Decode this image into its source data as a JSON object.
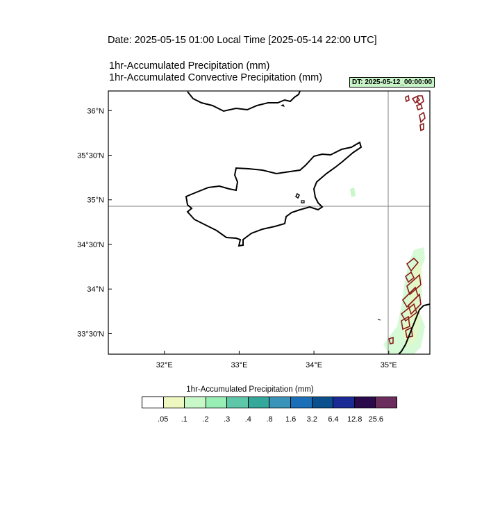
{
  "header": {
    "date_line": "Date: 2025-05-15  01:00 Local Time [2025-05-14  22:00 UTC]",
    "title_1": "1hr-Accumulated Precipitation   (mm)",
    "title_2": "1hr-Accumulated Convective Precipitation   (mm)",
    "dt_badge": "DT: 2025-05-12_00:00:00"
  },
  "map": {
    "lon_range": [
      31.25,
      35.55
    ],
    "lat_range": [
      33.27,
      36.22
    ],
    "lat_ticks": [
      {
        "value": 36.0,
        "label": "36°N"
      },
      {
        "value": 35.5,
        "label": "35°30'N"
      },
      {
        "value": 35.0,
        "label": "35°N"
      },
      {
        "value": 34.5,
        "label": "34°30'N"
      },
      {
        "value": 34.0,
        "label": "34°N"
      },
      {
        "value": 33.5,
        "label": "33°30'N"
      }
    ],
    "lon_ticks": [
      {
        "value": 32,
        "label": "32°E"
      },
      {
        "value": 33,
        "label": "33°E"
      },
      {
        "value": 34,
        "label": "34°E"
      },
      {
        "value": 35,
        "label": "35°E"
      }
    ],
    "gridlines": {
      "lat": 35.0,
      "lon": 35.0
    },
    "land_color": "#000000",
    "convective_contour_color": "#8b1a1a"
  },
  "colorbar": {
    "title": "1hr-Accumulated Precipitation  (mm)",
    "colors": [
      "#ffffff",
      "#eef7c0",
      "#c8f7c8",
      "#98eeb4",
      "#5ec7a8",
      "#34a89a",
      "#3a93b8",
      "#1a6fb8",
      "#0a4f8e",
      "#1c2a96",
      "#2a0a4a",
      "#6b2d5c"
    ],
    "labels": [
      ".05",
      ".1",
      ".2",
      ".3",
      ".4",
      ".8",
      "1.6",
      "3.2",
      "6.4",
      "12.8",
      "25.6"
    ]
  }
}
